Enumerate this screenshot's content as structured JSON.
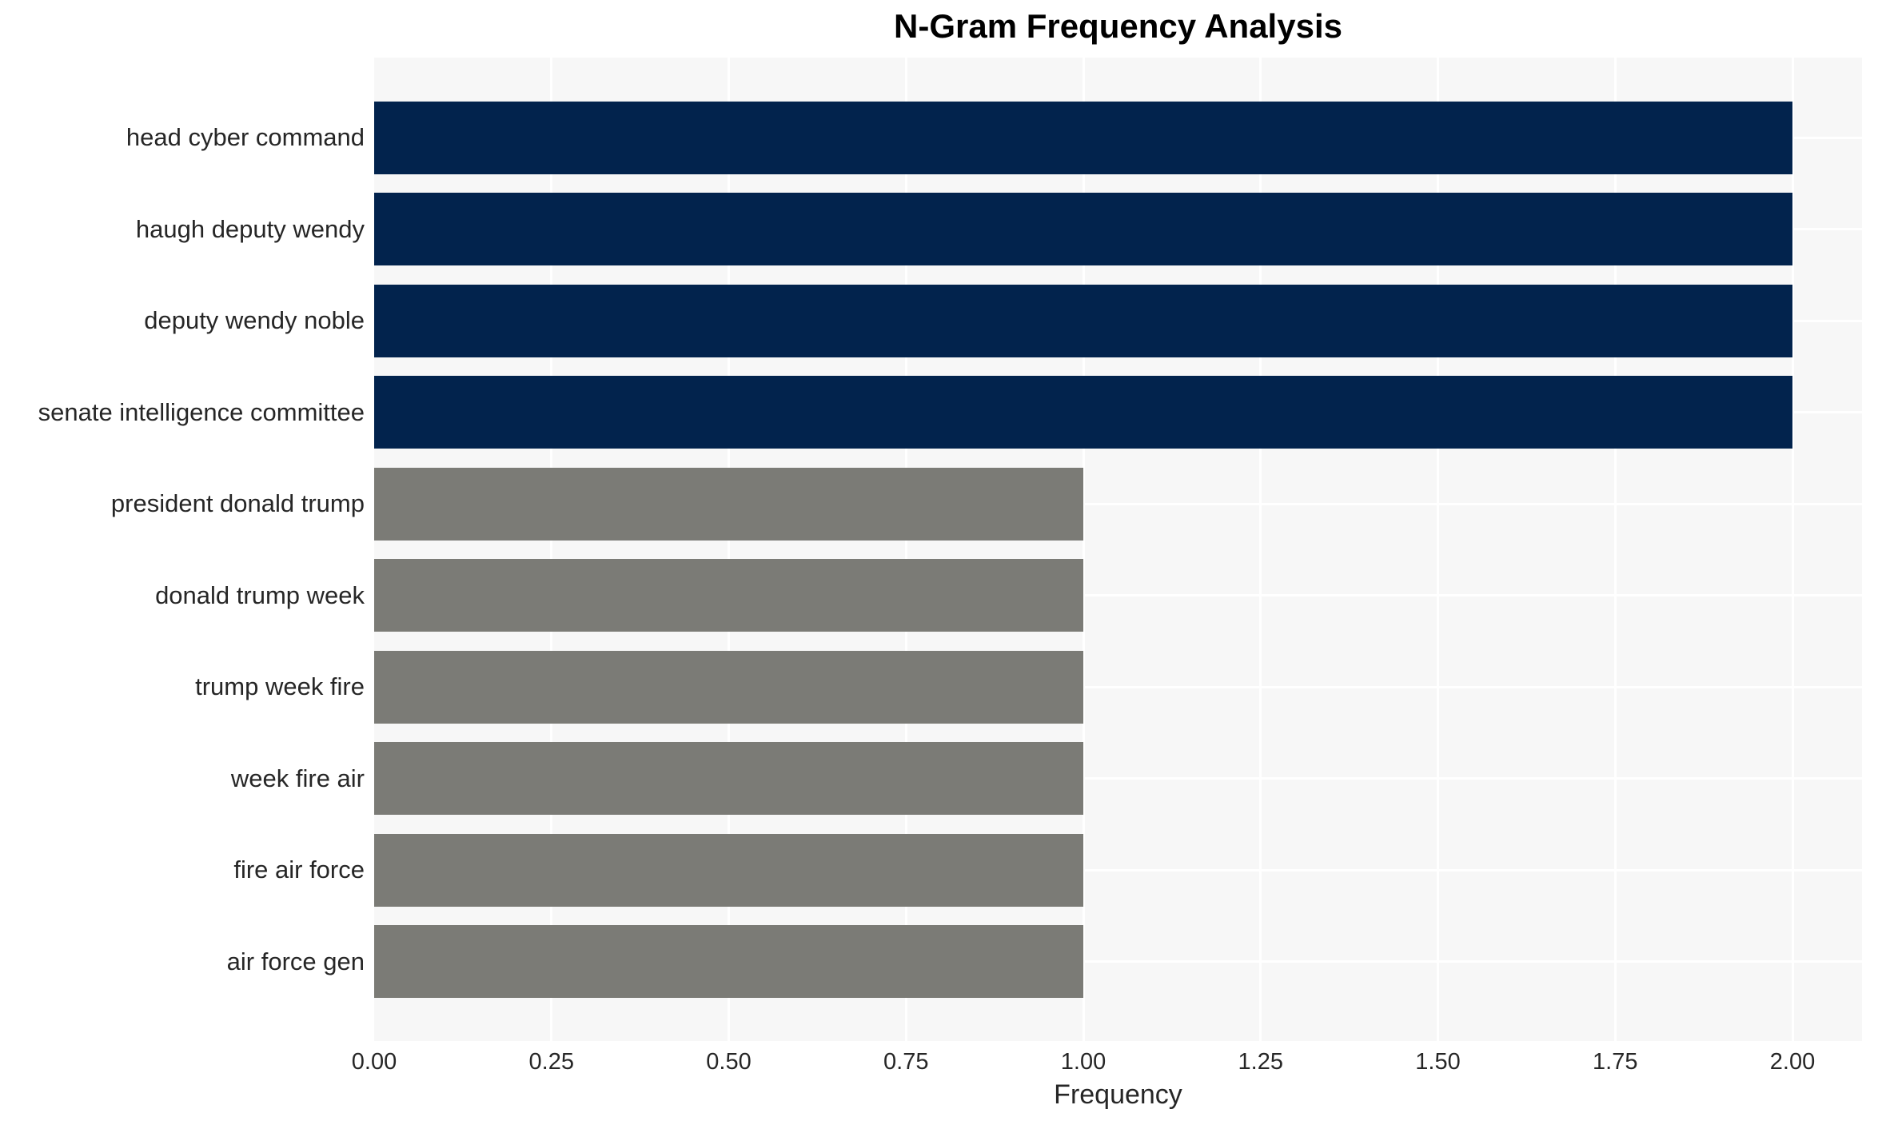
{
  "chart_data": {
    "type": "bar",
    "orientation": "horizontal",
    "title": "N-Gram Frequency Analysis",
    "xlabel": "Frequency",
    "ylabel": "",
    "categories": [
      "head cyber command",
      "haugh deputy wendy",
      "deputy wendy noble",
      "senate intelligence committee",
      "president donald trump",
      "donald trump week",
      "trump week fire",
      "week fire air",
      "fire air force",
      "air force gen"
    ],
    "values": [
      2,
      2,
      2,
      2,
      1,
      1,
      1,
      1,
      1,
      1
    ],
    "bar_colors": [
      "#02234d",
      "#02234d",
      "#02234d",
      "#02234d",
      "#7b7b76",
      "#7b7b76",
      "#7b7b76",
      "#7b7b76",
      "#7b7b76",
      "#7b7b76"
    ],
    "xlim": [
      0,
      2.1
    ],
    "xticks": [
      0.0,
      0.25,
      0.5,
      0.75,
      1.0,
      1.25,
      1.5,
      1.75,
      2.0
    ],
    "xtick_labels": [
      "0.00",
      "0.25",
      "0.50",
      "0.75",
      "1.00",
      "1.25",
      "1.50",
      "1.75",
      "2.00"
    ],
    "grid": true,
    "legend_position": "none",
    "colors": {
      "bar_high": "#02234d",
      "bar_low": "#7b7b76",
      "plot_background": "#f7f7f7",
      "figure_background": "#ffffff",
      "gridline": "#ffffff",
      "tick_text": "#262626",
      "title_text": "#000000"
    }
  }
}
